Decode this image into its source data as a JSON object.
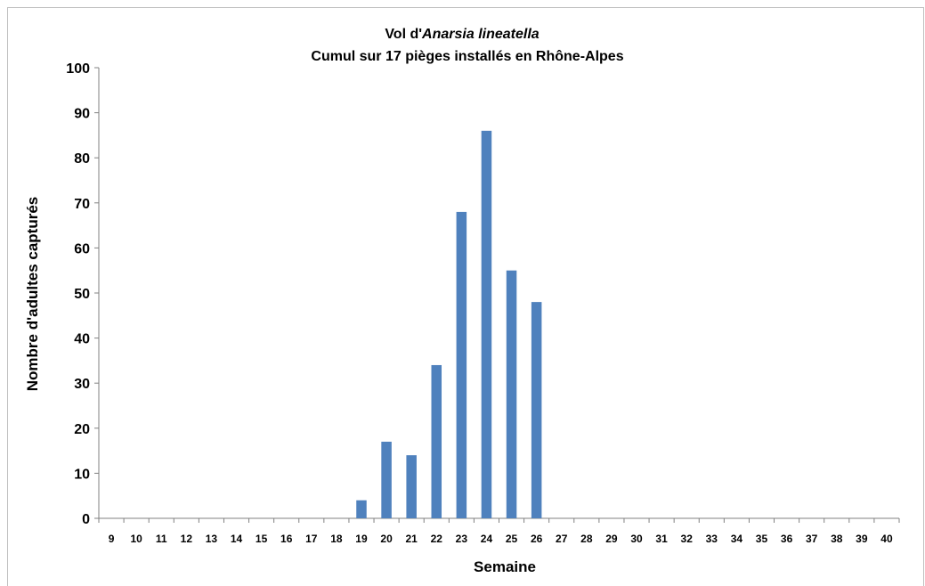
{
  "chart_data": {
    "type": "bar",
    "title_prefix": "Vol d'",
    "title_species": "Anarsia lineatella",
    "subtitle": "Cumul sur 17 pièges installés en Rhône-Alpes",
    "xlabel": "Semaine",
    "ylabel": "Nombre  d'adultes capturés",
    "ylim": [
      0,
      100
    ],
    "yticks": [
      0,
      10,
      20,
      30,
      40,
      50,
      60,
      70,
      80,
      90,
      100
    ],
    "grid": false,
    "legend": "none",
    "bar_color": "#4f81bd",
    "categories": [
      "9",
      "10",
      "11",
      "12",
      "13",
      "14",
      "15",
      "16",
      "17",
      "18",
      "19",
      "20",
      "21",
      "22",
      "23",
      "24",
      "25",
      "26",
      "27",
      "28",
      "29",
      "30",
      "31",
      "32",
      "33",
      "34",
      "35",
      "36",
      "37",
      "38",
      "39",
      "40"
    ],
    "values": [
      0,
      0,
      0,
      0,
      0,
      0,
      0,
      0,
      0,
      0,
      4,
      17,
      14,
      34,
      68,
      86,
      55,
      48,
      0,
      0,
      0,
      0,
      0,
      0,
      0,
      0,
      0,
      0,
      0,
      0,
      0,
      0
    ]
  }
}
